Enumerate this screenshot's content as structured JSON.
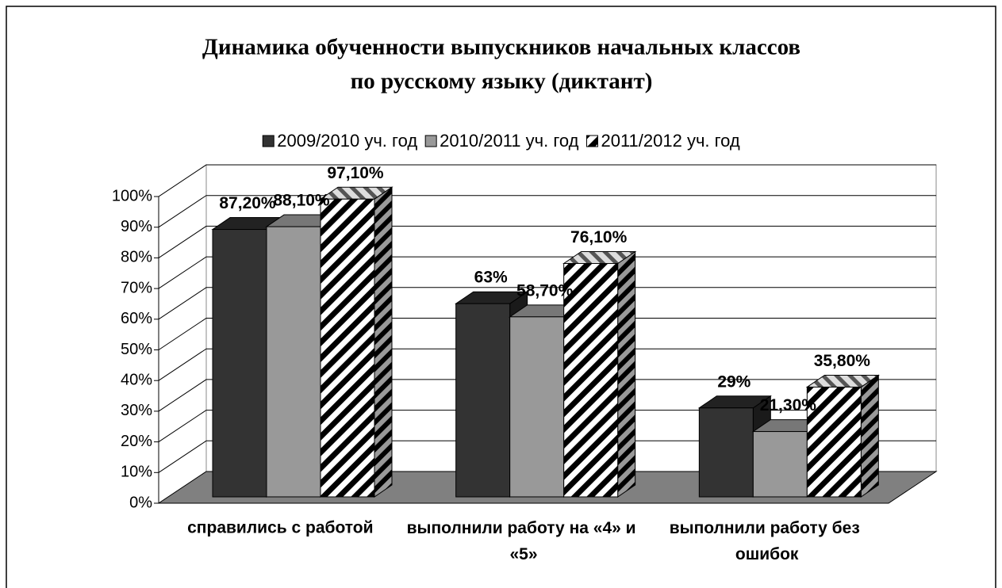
{
  "chart_data": {
    "type": "bar3d",
    "title": [
      "Динамика обученности выпускников начальных классов",
      "по русскому языку (диктант)"
    ],
    "categories": [
      "справились с работой",
      "выполнили работу на «4» и «5»",
      "выполнили работу без ошибок"
    ],
    "series": [
      {
        "name": "2009/2010 уч. год",
        "color": "#333333",
        "values": [
          87.2,
          63,
          29
        ],
        "value_labels": [
          "87,20%",
          "63%",
          "29%"
        ]
      },
      {
        "name": "2010/2011 уч. год",
        "color": "#999999",
        "values": [
          88.1,
          58.7,
          21.3
        ],
        "value_labels": [
          "88,10%",
          "58,70%",
          "21,30%"
        ]
      },
      {
        "name": "2011/2012 уч. год",
        "color": "#000000",
        "pattern": "hatch",
        "values": [
          97.1,
          76.1,
          35.8
        ],
        "value_labels": [
          "97,10%",
          "76,10%",
          "35,80%"
        ]
      }
    ],
    "ylim": [
      0,
      100
    ],
    "yticks": [
      {
        "value": 0,
        "label": "0%"
      },
      {
        "value": 10,
        "label": "10%"
      },
      {
        "value": 20,
        "label": "20%"
      },
      {
        "value": 30,
        "label": "30%"
      },
      {
        "value": 40,
        "label": "40%"
      },
      {
        "value": 50,
        "label": "50%"
      },
      {
        "value": 60,
        "label": "60%"
      },
      {
        "value": 70,
        "label": "70%"
      },
      {
        "value": 80,
        "label": "80%"
      },
      {
        "value": 90,
        "label": "90%"
      },
      {
        "value": 100,
        "label": "100%"
      }
    ],
    "grid": true,
    "legend": "top"
  }
}
